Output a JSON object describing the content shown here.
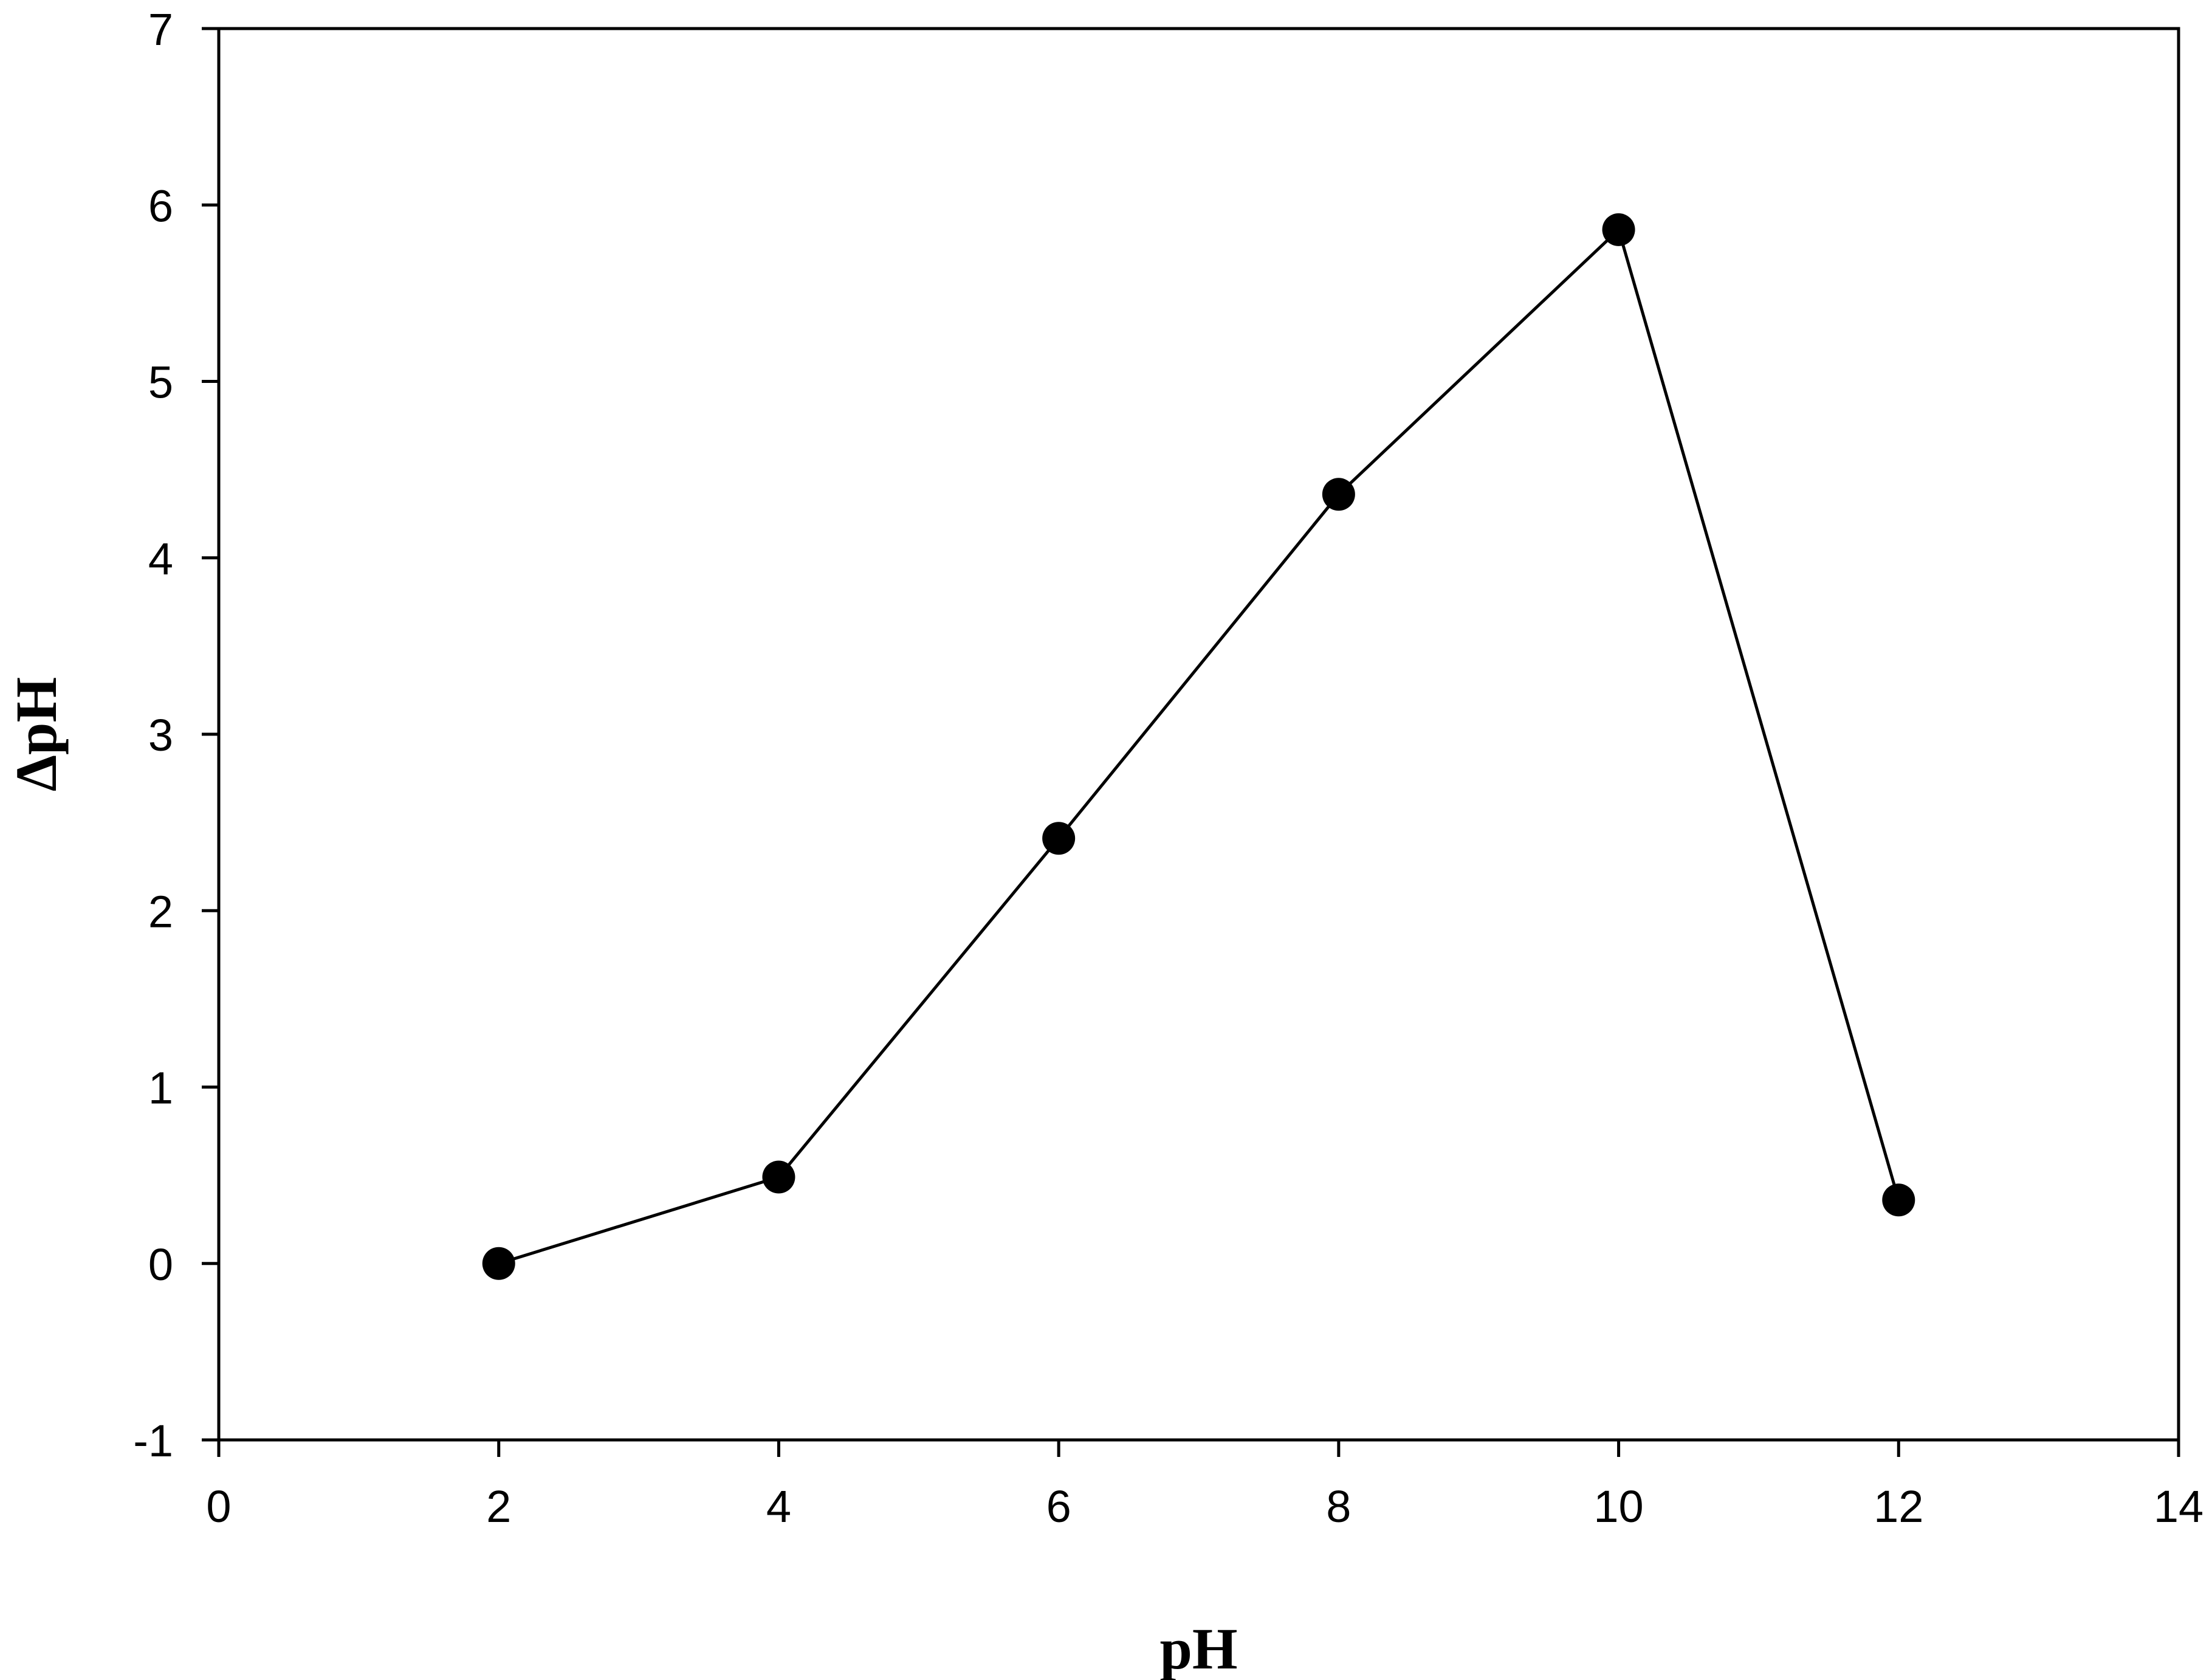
{
  "chart_data": {
    "type": "line",
    "title": "",
    "xlabel": "pH",
    "ylabel": "ΔpH",
    "xlim": [
      0,
      14
    ],
    "ylim": [
      -1,
      7
    ],
    "x_ticks": [
      0,
      2,
      4,
      6,
      8,
      10,
      12,
      14
    ],
    "y_ticks": [
      -1,
      0,
      1,
      2,
      3,
      4,
      5,
      6,
      7
    ],
    "grid": false,
    "legend": "none",
    "series": [
      {
        "x": [
          2,
          4,
          6,
          8,
          10,
          12
        ],
        "y": [
          0.0,
          0.49,
          2.41,
          4.36,
          5.86,
          0.36
        ],
        "marker": "filled-circle",
        "color": "#000000"
      }
    ]
  }
}
